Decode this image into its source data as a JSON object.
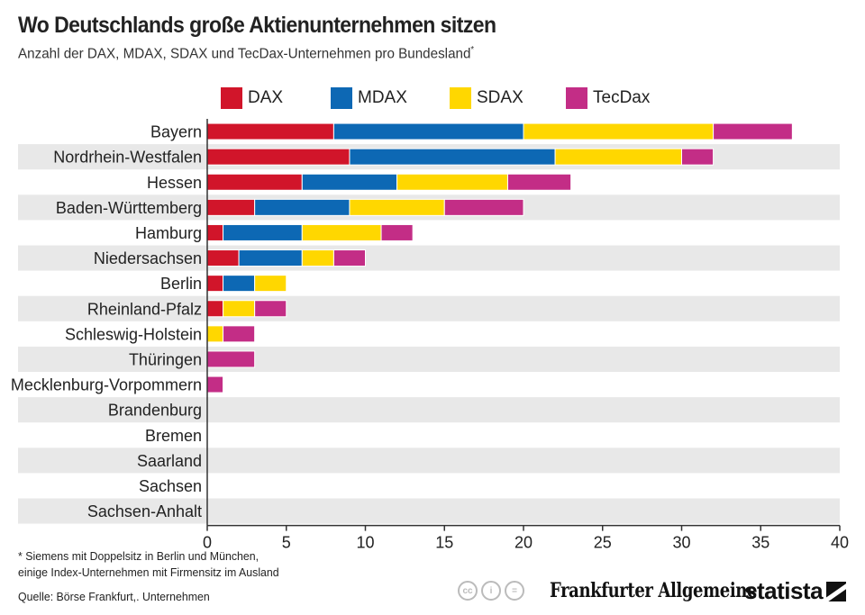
{
  "header": {
    "title": "Wo Deutschlands große Aktienunternehmen sitzen",
    "subtitle": "Anzahl der DAX, MDAX, SDAX und TecDax-Unternehmen pro Bundesland",
    "subtitle_marker": "*"
  },
  "footer": {
    "note_line1": "* Siemens mit Doppelsitz in Berlin und München,",
    "note_line2": "einige Index-Unternehmen mit Firmensitz im Ausland",
    "source": "Quelle: Börse Frankfurt,. Unternehmen",
    "license_icons": [
      "cc-icon",
      "person-icon",
      "equals-icon"
    ],
    "license_glyphs": [
      "cc",
      "i",
      "="
    ],
    "publisher": "Frankfurter Allgemeine",
    "brand": "statista"
  },
  "colors": {
    "DAX": "#d1152a",
    "MDAX": "#0d68b4",
    "SDAX": "#ffd700",
    "TecDax": "#c32d86",
    "stripe": "#e8e8e8",
    "axis": "#333333"
  },
  "chart_data": {
    "type": "bar",
    "orientation": "horizontal",
    "stacked": true,
    "title": "Wo Deutschlands große Aktienunternehmen sitzen",
    "subtitle": "Anzahl der DAX, MDAX, SDAX und TecDax-Unternehmen pro Bundesland*",
    "xlabel": "",
    "ylabel": "",
    "xlim": [
      0,
      40
    ],
    "xticks": [
      0,
      5,
      10,
      15,
      20,
      25,
      30,
      35,
      40
    ],
    "grid": false,
    "legend_position": "top",
    "categories": [
      "Bayern",
      "Nordrhein-Westfalen",
      "Hessen",
      "Baden-Württemberg",
      "Hamburg",
      "Niedersachsen",
      "Berlin",
      "Rheinland-Pfalz",
      "Schleswig-Holstein",
      "Thüringen",
      "Mecklenburg-Vorpommern",
      "Brandenburg",
      "Bremen",
      "Saarland",
      "Sachsen",
      "Sachsen-Anhalt"
    ],
    "series": [
      {
        "name": "DAX",
        "values": [
          8,
          9,
          6,
          3,
          1,
          2,
          1,
          1,
          0,
          0,
          0,
          0,
          0,
          0,
          0,
          0
        ]
      },
      {
        "name": "MDAX",
        "values": [
          12,
          13,
          6,
          6,
          5,
          4,
          2,
          0,
          0,
          0,
          0,
          0,
          0,
          0,
          0,
          0
        ]
      },
      {
        "name": "SDAX",
        "values": [
          12,
          8,
          7,
          6,
          5,
          2,
          2,
          2,
          1,
          0,
          0,
          0,
          0,
          0,
          0,
          0
        ]
      },
      {
        "name": "TecDax",
        "values": [
          5,
          2,
          4,
          5,
          2,
          2,
          0,
          2,
          2,
          3,
          1,
          0,
          0,
          0,
          0,
          0
        ]
      }
    ]
  }
}
